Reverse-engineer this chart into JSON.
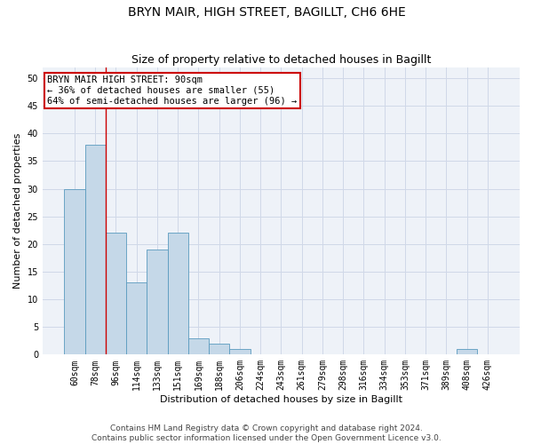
{
  "title": "BRYN MAIR, HIGH STREET, BAGILLT, CH6 6HE",
  "subtitle": "Size of property relative to detached houses in Bagillt",
  "xlabel": "Distribution of detached houses by size in Bagillt",
  "ylabel": "Number of detached properties",
  "footer_line1": "Contains HM Land Registry data © Crown copyright and database right 2024.",
  "footer_line2": "Contains public sector information licensed under the Open Government Licence v3.0.",
  "categories": [
    "60sqm",
    "78sqm",
    "96sqm",
    "114sqm",
    "133sqm",
    "151sqm",
    "169sqm",
    "188sqm",
    "206sqm",
    "224sqm",
    "243sqm",
    "261sqm",
    "279sqm",
    "298sqm",
    "316sqm",
    "334sqm",
    "353sqm",
    "371sqm",
    "389sqm",
    "408sqm",
    "426sqm"
  ],
  "values": [
    30,
    38,
    22,
    13,
    19,
    22,
    3,
    2,
    1,
    0,
    0,
    0,
    0,
    0,
    0,
    0,
    0,
    0,
    0,
    1,
    0
  ],
  "bar_color": "#c5d8e8",
  "bar_edge_color": "#5a9abf",
  "grid_color": "#d0d8e8",
  "background_color": "#eef2f8",
  "annotation_box_text": "BRYN MAIR HIGH STREET: 90sqm\n← 36% of detached houses are smaller (55)\n64% of semi-detached houses are larger (96) →",
  "annotation_box_color": "#cc0000",
  "vline_x": 1.5,
  "vline_color": "#cc0000",
  "ylim": [
    0,
    52
  ],
  "yticks": [
    0,
    5,
    10,
    15,
    20,
    25,
    30,
    35,
    40,
    45,
    50
  ],
  "title_fontsize": 10,
  "subtitle_fontsize": 9,
  "axis_label_fontsize": 8,
  "tick_fontsize": 7,
  "annotation_fontsize": 7.5,
  "footer_fontsize": 6.5
}
